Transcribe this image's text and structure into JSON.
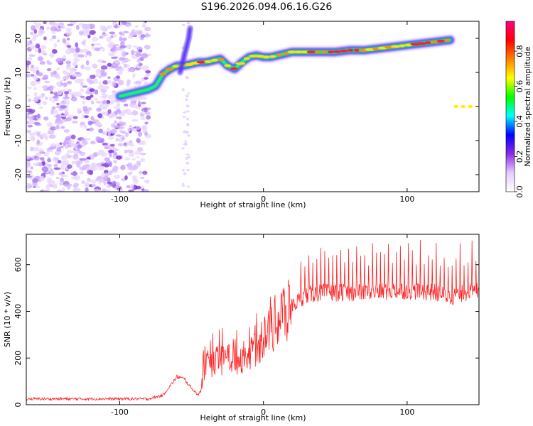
{
  "title": "S196.2026.094.06.16.G26",
  "chart_data": [
    {
      "type": "heatmap",
      "xlabel": "Height of straight line (km)",
      "ylabel": "Frequency (Hz)",
      "xlim": [
        -165,
        150
      ],
      "ylim": [
        -25,
        25
      ],
      "xticks": [
        -100,
        0,
        100
      ],
      "yticks": [
        -20,
        -10,
        0,
        10,
        20
      ],
      "colorbar": {
        "label": "Normalized spectral amplitude",
        "range": [
          0.0,
          0.97
        ],
        "ticks": [
          "0.0",
          "0.2",
          "0.4",
          "0.6",
          "0.8"
        ],
        "tick_values": [
          0.0,
          0.2,
          0.4,
          0.6,
          0.8
        ],
        "colors": [
          "#ffffff",
          "#e6ccff",
          "#8a2be2",
          "#0000ff",
          "#00ffff",
          "#00ff00",
          "#ffff00",
          "#ff8000",
          "#ff0000",
          "#ff0080"
        ]
      },
      "main_trace": {
        "x": [
          -100,
          -90,
          -80,
          -75,
          -70,
          -65,
          -60,
          -55,
          -50,
          -45,
          -40,
          -35,
          -30,
          -25,
          -20,
          -15,
          -10,
          -5,
          0,
          5,
          10,
          15,
          20,
          30,
          40,
          50,
          60,
          70,
          80,
          90,
          100,
          110,
          120,
          130
        ],
        "y": [
          3,
          4,
          5,
          6,
          9.5,
          11,
          12,
          12,
          12.5,
          13,
          13,
          13.5,
          14,
          12,
          11,
          13,
          14.5,
          15,
          14.5,
          14.5,
          15,
          15.5,
          16,
          16,
          16,
          16,
          16.5,
          16.5,
          17,
          17.5,
          18,
          18.5,
          19,
          19.5
        ]
      },
      "secondary_trace": {
        "x": [
          130,
          150
        ],
        "y": [
          0,
          0
        ]
      }
    },
    {
      "type": "line",
      "xlabel": "Height of straight line (km)",
      "ylabel": "SNR (10 * v/v)",
      "xlim": [
        -165,
        150
      ],
      "ylim": [
        0,
        730
      ],
      "xticks": [
        -100,
        0,
        100
      ],
      "yticks": [
        0,
        200,
        400,
        600
      ],
      "color": "#ff2020",
      "envelope": {
        "x": [
          -165,
          -80,
          -70,
          -65,
          -60,
          -55,
          -50,
          -45,
          -40,
          -35,
          -30,
          -25,
          -20,
          -15,
          -10,
          -5,
          0,
          5,
          10,
          15,
          20,
          25,
          30,
          40,
          60,
          80,
          100,
          120,
          130,
          140,
          150
        ],
        "y": [
          25,
          25,
          40,
          80,
          120,
          110,
          70,
          40,
          170,
          180,
          190,
          200,
          190,
          200,
          220,
          250,
          290,
          330,
          360,
          390,
          420,
          450,
          470,
          480,
          480,
          485,
          490,
          480,
          460,
          480,
          490
        ]
      }
    }
  ]
}
